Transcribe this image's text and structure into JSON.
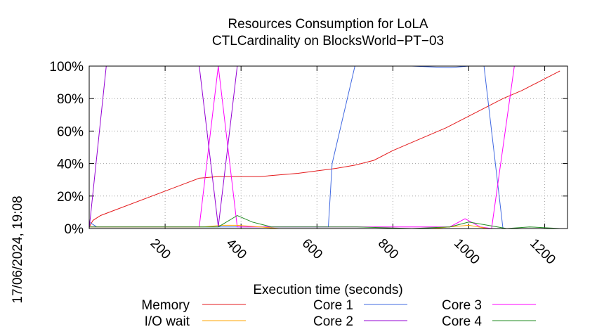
{
  "chart_data": {
    "type": "line",
    "title_line1": "Resources Consumption for LoLA",
    "title_line2": "CTLCardinality on BlocksWorld−PT−03",
    "xlabel": "Execution time (seconds)",
    "ylabel": "",
    "timestamp": "17/06/2024, 19:08",
    "xlim": [
      0,
      1260
    ],
    "ylim": [
      0,
      100
    ],
    "x_ticks": [
      200,
      400,
      600,
      800,
      1000,
      1200
    ],
    "x_tick_labels": [
      "200",
      "400",
      "600",
      "800",
      "1000",
      "1200"
    ],
    "y_ticks": [
      0,
      20,
      40,
      60,
      80,
      100
    ],
    "y_tick_labels": [
      "0%",
      "20%",
      "40%",
      "60%",
      "80%",
      "100%"
    ],
    "grid": true,
    "legend_position": "bottom",
    "series": [
      {
        "name": "Memory",
        "color": "#e41a1c",
        "points": [
          [
            0,
            1
          ],
          [
            10,
            5
          ],
          [
            30,
            8
          ],
          [
            290,
            31
          ],
          [
            340,
            32
          ],
          [
            390,
            32
          ],
          [
            450,
            32
          ],
          [
            500,
            33
          ],
          [
            550,
            34
          ],
          [
            600,
            35.5
          ],
          [
            650,
            37
          ],
          [
            700,
            39
          ],
          [
            750,
            42
          ],
          [
            800,
            48
          ],
          [
            870,
            55
          ],
          [
            940,
            62
          ],
          [
            990,
            68
          ],
          [
            1040,
            74
          ],
          [
            1090,
            80
          ],
          [
            1140,
            85
          ],
          [
            1190,
            91
          ],
          [
            1240,
            97
          ]
        ]
      },
      {
        "name": "Core 1",
        "color": "#4169e1",
        "points": [
          [
            0,
            4
          ],
          [
            20,
            1
          ],
          [
            630,
            1
          ],
          [
            640,
            40
          ],
          [
            700,
            100
          ],
          [
            850,
            100
          ],
          [
            950,
            99
          ],
          [
            1000,
            100
          ],
          [
            1040,
            100
          ],
          [
            1090,
            0
          ],
          [
            1240,
            0
          ]
        ]
      },
      {
        "name": "Core 3",
        "color": "#ff00ff",
        "points": [
          [
            0,
            1
          ],
          [
            290,
            1
          ],
          [
            340,
            100
          ],
          [
            390,
            1
          ],
          [
            950,
            1
          ],
          [
            990,
            6
          ],
          [
            1030,
            1
          ],
          [
            1060,
            0
          ],
          [
            1120,
            100
          ],
          [
            1240,
            100
          ]
        ]
      },
      {
        "name": "I/O wait",
        "color": "#ffa500",
        "points": [
          [
            0,
            1
          ],
          [
            300,
            1
          ],
          [
            350,
            2
          ],
          [
            390,
            2
          ],
          [
            450,
            1
          ],
          [
            500,
            0
          ],
          [
            900,
            0
          ],
          [
            1000,
            2
          ],
          [
            1050,
            0
          ],
          [
            1240,
            0
          ]
        ]
      },
      {
        "name": "Core 2",
        "color": "#9400d3",
        "points": [
          [
            0,
            0
          ],
          [
            45,
            100
          ],
          [
            290,
            100
          ],
          [
            340,
            1
          ],
          [
            390,
            100
          ],
          [
            1240,
            100
          ]
        ]
      },
      {
        "name": "Core 4",
        "color": "#228b22",
        "points": [
          [
            0,
            1
          ],
          [
            290,
            1
          ],
          [
            340,
            1
          ],
          [
            390,
            8
          ],
          [
            430,
            4
          ],
          [
            480,
            1
          ],
          [
            600,
            1
          ],
          [
            700,
            1
          ],
          [
            850,
            0
          ],
          [
            950,
            1
          ],
          [
            1000,
            4
          ],
          [
            1100,
            0
          ],
          [
            1160,
            1
          ],
          [
            1240,
            0
          ]
        ]
      }
    ],
    "legend": [
      {
        "name": "Memory",
        "color": "#e41a1c"
      },
      {
        "name": "Core 1",
        "color": "#4169e1"
      },
      {
        "name": "Core 3",
        "color": "#ff00ff"
      },
      {
        "name": "I/O wait",
        "color": "#ffa500"
      },
      {
        "name": "Core 2",
        "color": "#9400d3"
      },
      {
        "name": "Core 4",
        "color": "#228b22"
      }
    ]
  }
}
